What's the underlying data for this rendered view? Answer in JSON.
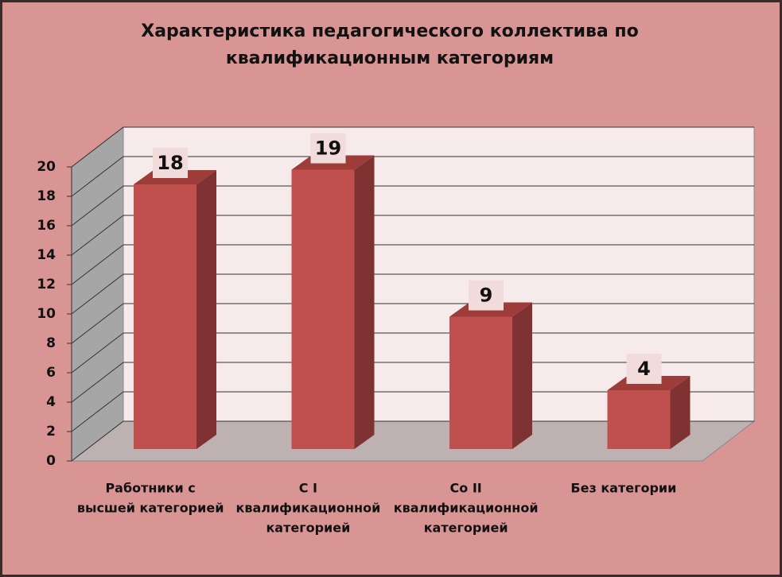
{
  "chart_data": {
    "type": "bar3d",
    "title": [
      "Характеристика педагогического коллектива по",
      "квалификационным категориям"
    ],
    "categories": [
      [
        "Работники с",
        "высшей категорией"
      ],
      [
        "С I",
        "квалификационной",
        "категорией"
      ],
      [
        "Со II",
        "квалификационной",
        "категорией"
      ],
      [
        "Без категории"
      ]
    ],
    "values": [
      18,
      19,
      9,
      4
    ],
    "color": "#c0504d",
    "ylim": [
      0,
      20
    ],
    "yticks": [
      0,
      2,
      4,
      6,
      8,
      10,
      12,
      14,
      16,
      18,
      20
    ],
    "grid": true
  }
}
